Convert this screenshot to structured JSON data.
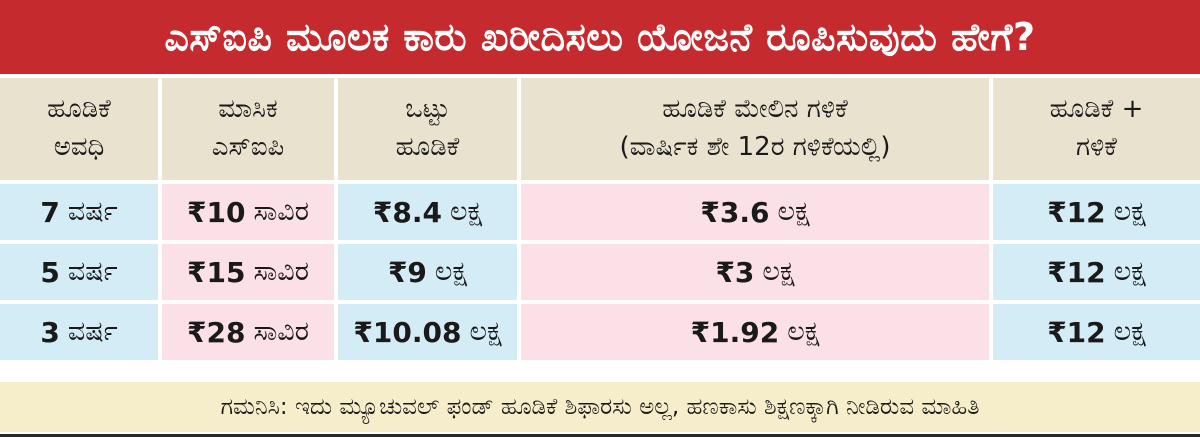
{
  "title": "ಎಸ್‌ಐಪಿ ಮೂಲಕ ಕಾರು ಖರೀದಿಸಲು ಯೋಜನೆ ರೂಪಿಸುವುದು ಹೇಗೆ?",
  "headers": [
    {
      "line1": "ಹೂಡಿಕೆ",
      "line2": "ಅವಧಿ"
    },
    {
      "line1": "ಮಾಸಿಕ",
      "line2": "ಎಸ್‌ಐಪಿ"
    },
    {
      "line1": "ಒಟ್ಟು",
      "line2": "ಹೂಡಿಕೆ"
    },
    {
      "line1": "ಹೂಡಿಕೆ ಮೇಲಿನ ಗಳಿಕೆ",
      "line2": "(ವಾರ್ಷಿಕ ಶೇ 12ರ ಗಳಿಕೆಯಲ್ಲಿ)"
    },
    {
      "line1": "ಹೂಡಿಕೆ +",
      "line2": "ಗಳಿಕೆ"
    }
  ],
  "rows": [
    {
      "period": {
        "num": "7",
        "unit": "ವರ್ಷ"
      },
      "sip": {
        "num": "₹10",
        "unit": "ಸಾವಿರ"
      },
      "total": {
        "num": "₹8.4",
        "unit": "ಲಕ್ಷ"
      },
      "earning": {
        "num": "₹3.6",
        "unit": "ಲಕ್ಷ"
      },
      "sum": {
        "num": "₹12",
        "unit": "ಲಕ್ಷ"
      }
    },
    {
      "period": {
        "num": "5",
        "unit": "ವರ್ಷ"
      },
      "sip": {
        "num": "₹15",
        "unit": "ಸಾವಿರ"
      },
      "total": {
        "num": "₹9",
        "unit": "ಲಕ್ಷ"
      },
      "earning": {
        "num": "₹3",
        "unit": "ಲಕ್ಷ"
      },
      "sum": {
        "num": "₹12",
        "unit": "ಲಕ್ಷ"
      }
    },
    {
      "period": {
        "num": "3",
        "unit": "ವರ್ಷ"
      },
      "sip": {
        "num": "₹28",
        "unit": "ಸಾವಿರ"
      },
      "total": {
        "num": "₹10.08",
        "unit": "ಲಕ್ಷ"
      },
      "earning": {
        "num": "₹1.92",
        "unit": "ಲಕ್ಷ"
      },
      "sum": {
        "num": "₹12",
        "unit": "ಲಕ್ಷ"
      }
    }
  ],
  "note": "ಗಮನಿಸಿ: ಇದು ಮ್ಯೂಚುವಲ್ ಫಂಡ್ ಹೂಡಿಕೆ ಶಿಫಾರಸು ಅಲ್ಲ, ಹಣಕಾಸು ಶಿಕ್ಷಣಕ್ಕಾಗಿ ನೀಡಿರುವ ಮಾಹಿತಿ",
  "colors": {
    "title_bg": "#c52a2f",
    "header_bg": "#e9e2cf",
    "blue_cell": "#d3ecf5",
    "pink_cell": "#fbe1e7",
    "note_bg": "#f6eecb"
  }
}
